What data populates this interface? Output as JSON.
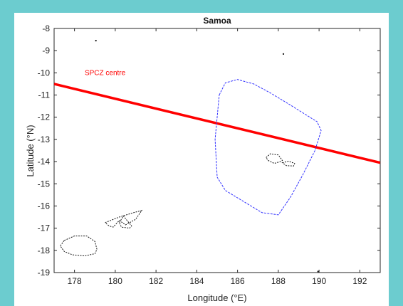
{
  "chart_data": {
    "type": "map",
    "title": "Samoa",
    "xlabel": "Longitude (°E)",
    "ylabel": "Latitude (°N)",
    "xlim": [
      177,
      193
    ],
    "ylim": [
      -19,
      -8
    ],
    "xticks": [
      178,
      180,
      182,
      184,
      186,
      188,
      190,
      192
    ],
    "yticks": [
      -8,
      -9,
      -10,
      -11,
      -12,
      -13,
      -14,
      -15,
      -16,
      -17,
      -18,
      -19
    ],
    "grid": false,
    "series": [
      {
        "name": "SPCZ centre",
        "kind": "line",
        "color": "#ff0000",
        "x": [
          177,
          193
        ],
        "y": [
          -10.5,
          -14.05
        ]
      },
      {
        "kind": "dashed-outline",
        "color": "#3333ff",
        "x": [
          185.1,
          185.4,
          186.0,
          186.8,
          187.6,
          188.5,
          189.2,
          189.9,
          190.1,
          189.8,
          189.2,
          188.6,
          188.0,
          187.2,
          186.3,
          185.4,
          185.0,
          184.9,
          185.1
        ],
        "y": [
          -11.0,
          -10.45,
          -10.3,
          -10.5,
          -10.9,
          -11.4,
          -11.8,
          -12.2,
          -12.6,
          -13.5,
          -14.6,
          -15.6,
          -16.4,
          -16.3,
          -15.8,
          -15.3,
          -14.7,
          -13.0,
          -11.0
        ]
      }
    ],
    "land_outlines": [
      {
        "x": [
          187.4,
          187.6,
          188.0,
          188.2,
          188.1,
          187.8,
          187.5,
          187.4
        ],
        "y": [
          -13.82,
          -13.65,
          -13.7,
          -13.95,
          -14.0,
          -14.08,
          -13.95,
          -13.82
        ]
      },
      {
        "x": [
          188.2,
          188.5,
          188.8,
          188.75,
          188.4,
          188.2
        ],
        "y": [
          -14.05,
          -13.98,
          -14.08,
          -14.2,
          -14.18,
          -14.05
        ]
      },
      {
        "x": [
          179.5,
          180.2,
          180.9,
          181.3,
          181.0,
          180.5,
          180.2,
          179.9,
          179.7,
          179.5
        ],
        "y": [
          -16.75,
          -16.5,
          -16.3,
          -16.2,
          -16.6,
          -16.85,
          -16.65,
          -16.95,
          -16.9,
          -16.75
        ]
      },
      {
        "x": [
          180.2,
          180.4,
          180.8,
          180.7,
          180.3,
          180.2
        ],
        "y": [
          -16.75,
          -16.45,
          -16.9,
          -17.0,
          -16.95,
          -16.75
        ]
      },
      {
        "x": [
          177.5,
          178.0,
          178.6,
          179.0,
          179.1,
          179.0,
          178.5,
          177.9,
          177.5,
          177.3,
          177.5
        ],
        "y": [
          -17.55,
          -17.35,
          -17.35,
          -17.6,
          -17.95,
          -18.15,
          -18.25,
          -18.2,
          -18.05,
          -17.8,
          -17.55
        ]
      }
    ],
    "points": [
      {
        "x": 179.05,
        "y": -8.55
      },
      {
        "x": 188.25,
        "y": -9.15
      },
      {
        "x": 189.95,
        "y": -18.95
      }
    ],
    "annotations": [
      {
        "text": "SPCZ centre",
        "x": 178.5,
        "y": -10.1,
        "color": "#ff0000"
      }
    ]
  }
}
